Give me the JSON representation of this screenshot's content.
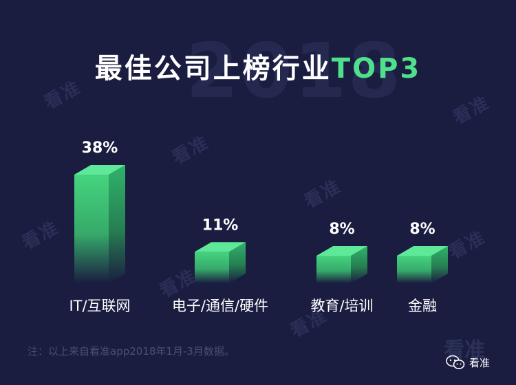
{
  "title": {
    "main": "最佳公司上榜行业",
    "accent": "TOP3",
    "background_year": "2018"
  },
  "watermark": "看准",
  "note": "注：以上来自看准app2018年1月-3月数据。",
  "brand": {
    "logo_text": "看准",
    "wechat_name": "看准"
  },
  "colors": {
    "background": "#1a1d40",
    "bar_top": "#5ee99a",
    "bar_front": "#45d47f",
    "accent": "#4ee08a"
  },
  "chart_data": {
    "type": "bar",
    "categories": [
      "IT/互联网",
      "电子/通信/硬件",
      "教育/培训",
      "金融"
    ],
    "values": [
      38,
      11,
      8,
      8
    ],
    "value_labels": [
      "38%",
      "11%",
      "8%",
      "8%"
    ],
    "unit": "%",
    "ylim": [
      0,
      38
    ],
    "grid": false,
    "legend": "none"
  }
}
